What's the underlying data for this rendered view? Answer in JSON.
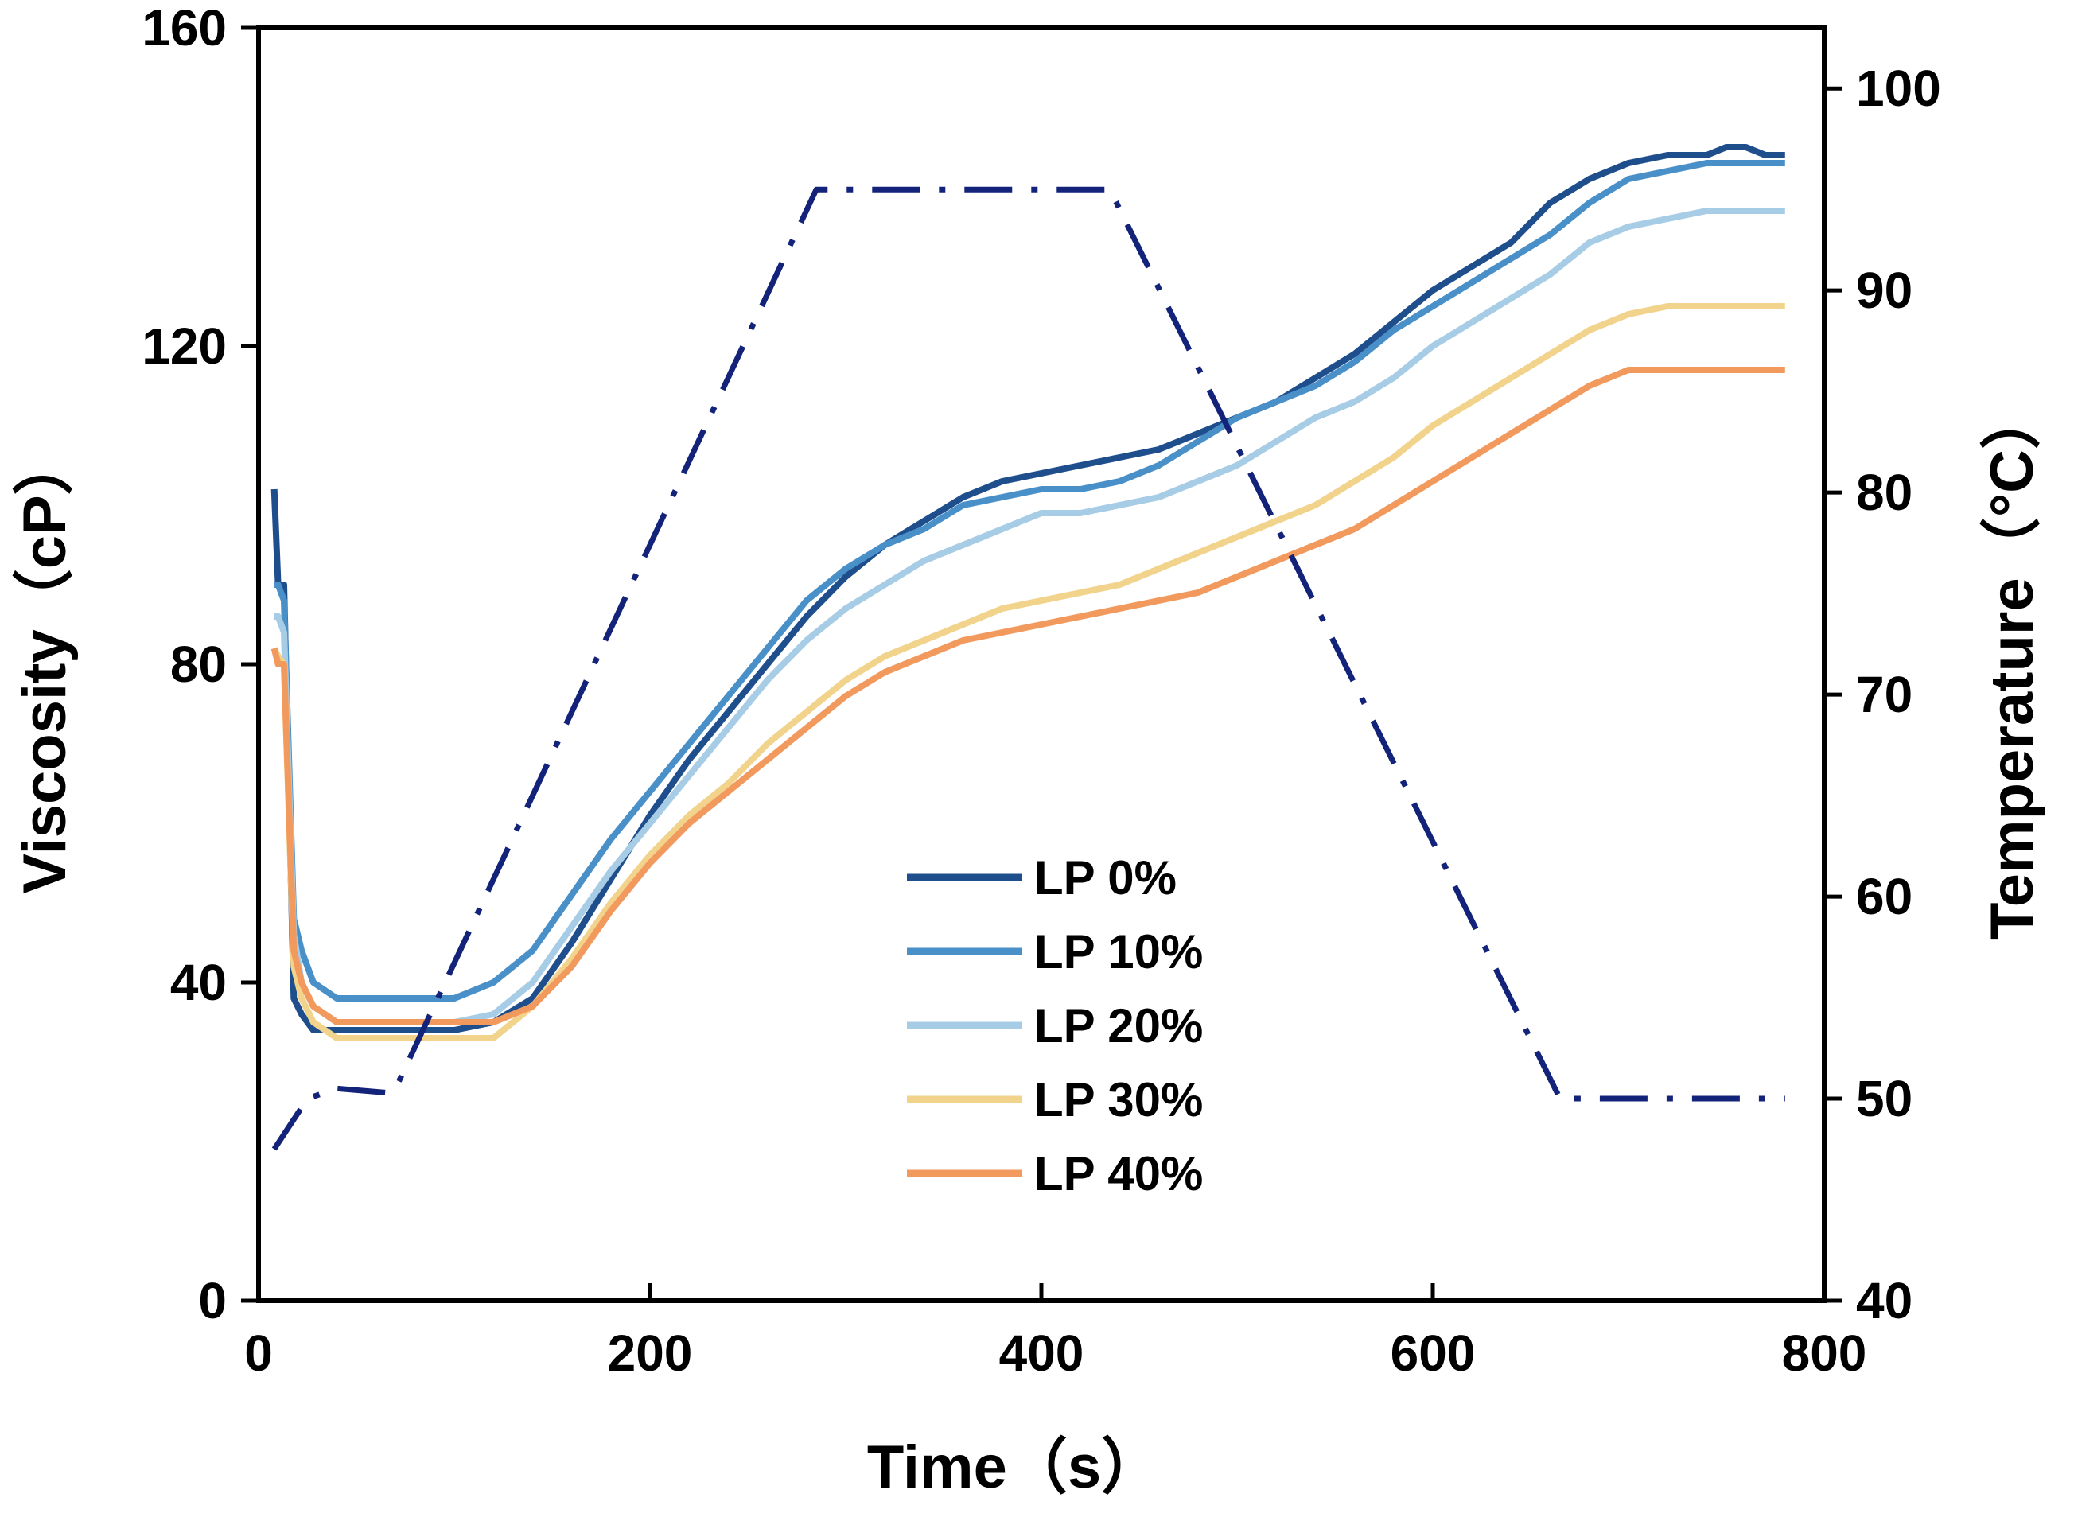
{
  "chart_data": {
    "type": "line",
    "title": "",
    "xlabel": "Time（s）",
    "ylabel_left": "Viscosity（cP）",
    "ylabel_right": "Temperature（°C）",
    "xlim": [
      0,
      800
    ],
    "ylim_left": [
      0,
      160
    ],
    "ylim_right": [
      40,
      103
    ],
    "x_ticks": [
      0,
      200,
      400,
      600,
      800
    ],
    "y_ticks_left": [
      0,
      40,
      80,
      120,
      160
    ],
    "y_ticks_right": [
      40,
      50,
      60,
      70,
      80,
      90,
      100
    ],
    "grid": false,
    "legend_position": "lower-center",
    "series": [
      {
        "name": "LP 0%",
        "axis": "left",
        "color": "#1f4e8c",
        "style": "solid",
        "x": [
          8,
          10,
          13,
          18,
          22,
          28,
          40,
          60,
          80,
          100,
          120,
          140,
          160,
          180,
          200,
          220,
          240,
          260,
          280,
          300,
          320,
          340,
          360,
          380,
          400,
          420,
          440,
          460,
          480,
          500,
          520,
          540,
          560,
          580,
          600,
          620,
          640,
          660,
          680,
          700,
          720,
          740,
          750,
          760,
          770,
          780
        ],
        "y": [
          102,
          90,
          90,
          38,
          36,
          34,
          34,
          34,
          34,
          34,
          35,
          38,
          45,
          53,
          61,
          68,
          74,
          80,
          86,
          91,
          95,
          98,
          101,
          103,
          104,
          105,
          106,
          107,
          109,
          111,
          113,
          116,
          119,
          123,
          127,
          130,
          133,
          138,
          141,
          143,
          144,
          144,
          145,
          145,
          144,
          144
        ]
      },
      {
        "name": "LP 10%",
        "axis": "left",
        "color": "#4a90c8",
        "style": "solid",
        "x": [
          8,
          10,
          13,
          18,
          22,
          28,
          40,
          60,
          80,
          100,
          120,
          140,
          160,
          180,
          200,
          220,
          240,
          260,
          280,
          300,
          320,
          340,
          360,
          380,
          400,
          420,
          440,
          460,
          480,
          500,
          520,
          540,
          560,
          580,
          600,
          620,
          640,
          660,
          680,
          700,
          720,
          740,
          760,
          780
        ],
        "y": [
          90,
          90,
          88,
          48,
          44,
          40,
          38,
          38,
          38,
          38,
          40,
          44,
          51,
          58,
          64,
          70,
          76,
          82,
          88,
          92,
          95,
          97,
          100,
          101,
          102,
          102,
          103,
          105,
          108,
          111,
          113,
          115,
          118,
          122,
          125,
          128,
          131,
          134,
          138,
          141,
          142,
          143,
          143,
          143
        ]
      },
      {
        "name": "LP 20%",
        "axis": "left",
        "color": "#a7cce6",
        "style": "solid",
        "x": [
          8,
          10,
          13,
          18,
          22,
          28,
          40,
          60,
          80,
          100,
          120,
          140,
          160,
          180,
          200,
          220,
          240,
          260,
          280,
          300,
          320,
          340,
          360,
          380,
          400,
          420,
          440,
          460,
          480,
          500,
          520,
          540,
          560,
          580,
          600,
          620,
          640,
          660,
          680,
          700,
          720,
          740,
          760,
          780
        ],
        "y": [
          86,
          86,
          84,
          46,
          40,
          37,
          35,
          35,
          35,
          35,
          36,
          40,
          47,
          54,
          60,
          66,
          72,
          78,
          83,
          87,
          90,
          93,
          95,
          97,
          99,
          99,
          100,
          101,
          103,
          105,
          108,
          111,
          113,
          116,
          120,
          123,
          126,
          129,
          133,
          135,
          136,
          137,
          137,
          137
        ]
      },
      {
        "name": "LP 30%",
        "axis": "left",
        "color": "#f2d38c",
        "style": "solid",
        "x": [
          8,
          10,
          13,
          18,
          22,
          28,
          40,
          60,
          80,
          100,
          120,
          140,
          160,
          180,
          200,
          220,
          240,
          260,
          280,
          300,
          320,
          340,
          360,
          380,
          400,
          420,
          440,
          460,
          480,
          500,
          520,
          540,
          560,
          580,
          600,
          620,
          640,
          660,
          680,
          700,
          720,
          740,
          760,
          780
        ],
        "y": [
          82,
          81,
          80,
          42,
          38,
          35,
          33,
          33,
          33,
          33,
          33,
          37,
          43,
          50,
          56,
          61,
          65,
          70,
          74,
          78,
          81,
          83,
          85,
          87,
          88,
          89,
          90,
          92,
          94,
          96,
          98,
          100,
          103,
          106,
          110,
          113,
          116,
          119,
          122,
          124,
          125,
          125,
          125,
          125
        ]
      },
      {
        "name": "LP 40%",
        "axis": "left",
        "color": "#f29a5e",
        "style": "solid",
        "x": [
          8,
          10,
          13,
          18,
          22,
          28,
          40,
          60,
          80,
          100,
          120,
          140,
          160,
          180,
          200,
          220,
          240,
          260,
          280,
          300,
          320,
          340,
          360,
          380,
          400,
          420,
          440,
          460,
          480,
          500,
          520,
          540,
          560,
          580,
          600,
          620,
          640,
          660,
          680,
          700,
          720,
          740,
          760,
          780
        ],
        "y": [
          82,
          80,
          80,
          44,
          40,
          37,
          35,
          35,
          35,
          35,
          35,
          37,
          42,
          49,
          55,
          60,
          64,
          68,
          72,
          76,
          79,
          81,
          83,
          84,
          85,
          86,
          87,
          88,
          89,
          91,
          93,
          95,
          97,
          100,
          103,
          106,
          109,
          112,
          115,
          117,
          117,
          117,
          117,
          117
        ]
      },
      {
        "name": "Temperature",
        "axis": "right",
        "color": "#14237a",
        "style": "dashdot",
        "x": [
          8,
          25,
          40,
          65,
          70,
          285,
          300,
          420,
          435,
          665,
          670,
          700,
          750,
          780
        ],
        "y": [
          47.5,
          50,
          50.5,
          50.3,
          50.5,
          95,
          95,
          95,
          95,
          50,
          50,
          50,
          50,
          50
        ]
      }
    ]
  }
}
